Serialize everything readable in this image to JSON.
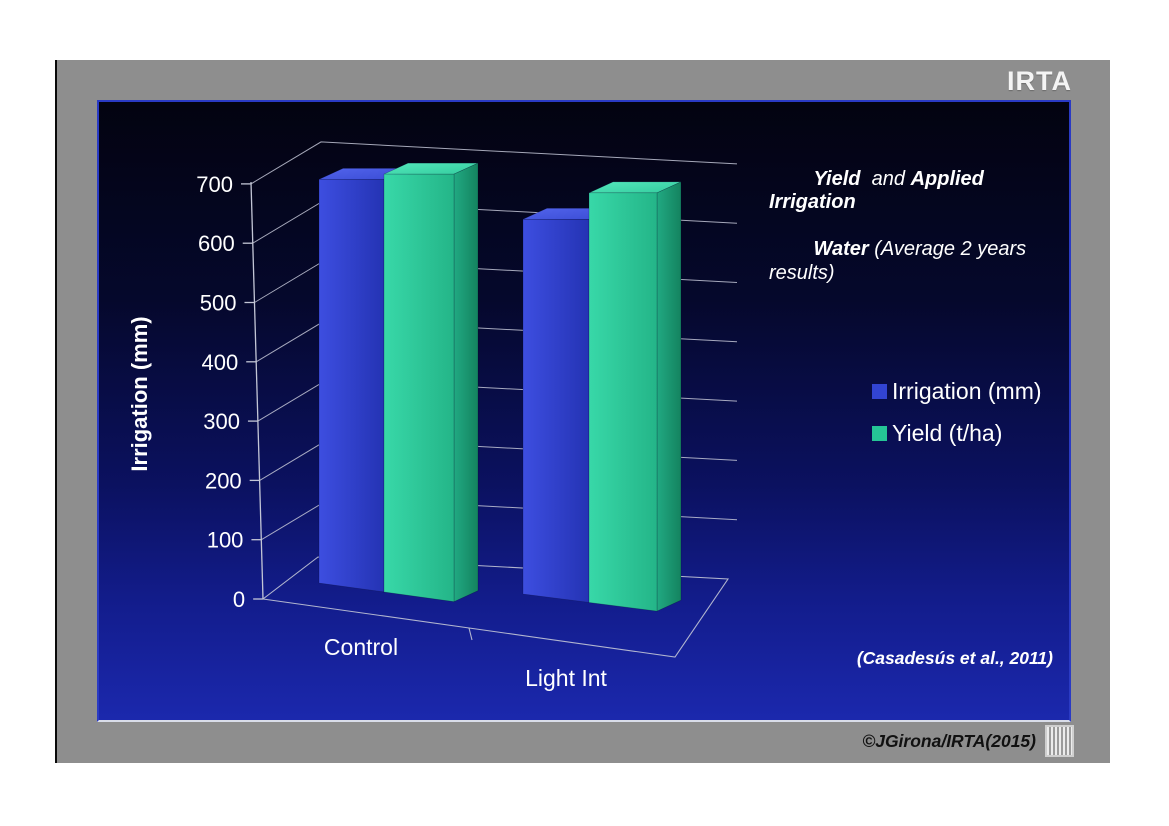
{
  "slide": {
    "logo_text": "IRTA",
    "footer_credit": "©JGirona/IRTA(2015)"
  },
  "chart": {
    "title": {
      "seg1": "Yield",
      "seg2": "  and ",
      "seg3": "Applied Irrigation",
      "seg4": "Water",
      "seg5": " (Average 2 years results)"
    },
    "citation": "(Casadesús et al., 2011)",
    "legend": {
      "items": [
        {
          "label": "Irrigation (mm)",
          "color": "#3244d2"
        },
        {
          "label": "Yield (t/ha)",
          "color": "#25c596"
        }
      ]
    }
  },
  "chart_data": {
    "type": "bar",
    "projection": "3d",
    "title": "Yield and Applied Irrigation Water (Average 2 years results)",
    "categories": [
      "Control",
      "Light Int"
    ],
    "series": [
      {
        "name": "Irrigation (mm)",
        "color": "#2e3ec8",
        "values": [
          700,
          650
        ]
      },
      {
        "name": "Yield (t/ha)",
        "color": "#2cc79a",
        "values": [
          725,
          710
        ],
        "note": "yield bars plotted against a hidden secondary axis; heights given in left-axis (mm) units as drawn"
      }
    ],
    "ylabel": "Irrigation (mm)",
    "ylim": [
      0,
      700
    ],
    "yticks": [
      0,
      100,
      200,
      300,
      400,
      500,
      600,
      700
    ],
    "ytick_labels": [
      "0",
      "100",
      "200",
      "300",
      "400",
      "500",
      "600",
      "700"
    ],
    "legend_position": "middle-right",
    "grid": true,
    "background": "dark blue vertical gradient",
    "annotation": "(Casadesús et al., 2011)"
  }
}
